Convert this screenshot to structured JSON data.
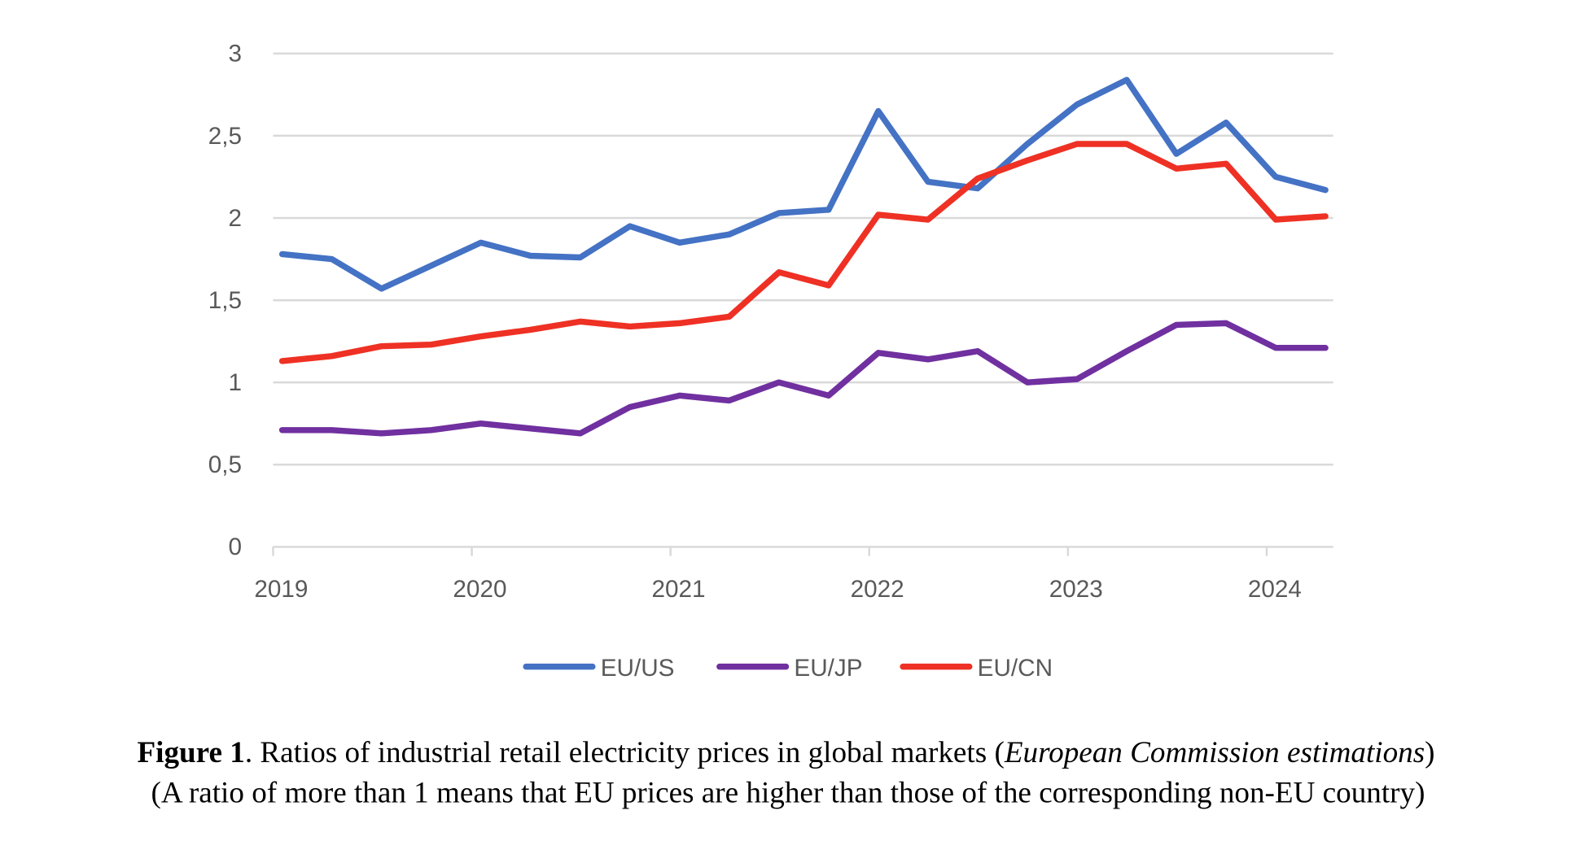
{
  "chart_data": {
    "type": "line",
    "title": "",
    "xlabel": "",
    "ylabel": "",
    "ylim": [
      0,
      3
    ],
    "yticks": [
      "0",
      "0,5",
      "1",
      "1,5",
      "2",
      "2,5",
      "3"
    ],
    "ytick_values": [
      0,
      0.5,
      1,
      1.5,
      2,
      2.5,
      3
    ],
    "xtick_labels": [
      "2019",
      "2020",
      "2021",
      "2022",
      "2023",
      "2024"
    ],
    "x": [
      "2019Q1",
      "2019Q2",
      "2019Q3",
      "2019Q4",
      "2020Q1",
      "2020Q2",
      "2020Q3",
      "2020Q4",
      "2021Q1",
      "2021Q2",
      "2021Q3",
      "2021Q4",
      "2022Q1",
      "2022Q2",
      "2022Q3",
      "2022Q4",
      "2023Q1",
      "2023Q2",
      "2023Q3",
      "2023Q4",
      "2024Q1",
      "2024Q2"
    ],
    "grid": true,
    "legend_position": "bottom",
    "series": [
      {
        "name": "EU/US",
        "color": "#4472C4",
        "values": [
          1.78,
          1.75,
          1.57,
          1.71,
          1.85,
          1.77,
          1.76,
          1.95,
          1.85,
          1.9,
          2.03,
          2.05,
          2.65,
          2.22,
          2.18,
          2.45,
          2.69,
          2.84,
          2.39,
          2.58,
          2.25,
          2.17
        ]
      },
      {
        "name": "EU/JP",
        "color": "#7030A0",
        "values": [
          0.71,
          0.71,
          0.69,
          0.71,
          0.75,
          0.72,
          0.69,
          0.85,
          0.92,
          0.89,
          1.0,
          0.92,
          1.18,
          1.14,
          1.19,
          1.0,
          1.02,
          1.19,
          1.35,
          1.36,
          1.21,
          1.21
        ]
      },
      {
        "name": "EU/CN",
        "color": "#EE3124",
        "values": [
          1.13,
          1.16,
          1.22,
          1.23,
          1.28,
          1.32,
          1.37,
          1.34,
          1.36,
          1.4,
          1.67,
          1.59,
          2.02,
          1.99,
          2.24,
          2.35,
          2.45,
          2.45,
          2.3,
          2.33,
          1.99,
          2.01
        ]
      }
    ]
  },
  "caption": {
    "label": "Figure 1",
    "line1_text": ". Ratios of industrial retail electricity prices in global markets (",
    "line1_italic": "European Commission estimations",
    "line1_end": ")",
    "line2": "(A ratio of more than 1 means that EU prices are higher than those of the corresponding non-EU country)"
  }
}
